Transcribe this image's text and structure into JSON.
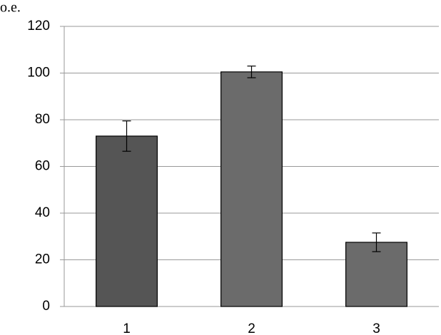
{
  "chart_data": {
    "type": "bar",
    "y_label": "о.е.",
    "categories": [
      "1",
      "2",
      "3"
    ],
    "values": [
      73,
      100.5,
      27.5
    ],
    "errors": [
      6.5,
      2.5,
      4
    ],
    "colors": [
      "#555555",
      "#6b6b6b",
      "#6b6b6b"
    ],
    "ylim": [
      0,
      120
    ],
    "yticks": [
      0,
      20,
      40,
      60,
      80,
      100,
      120
    ],
    "grid": true
  }
}
